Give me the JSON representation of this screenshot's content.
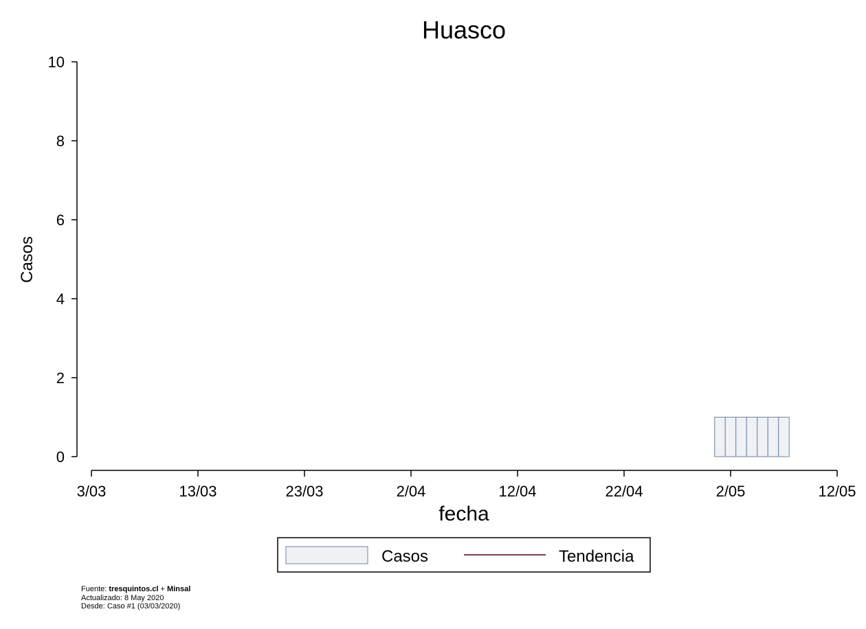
{
  "chart_data": {
    "type": "bar",
    "title": "Huasco",
    "xlabel": "fecha",
    "ylabel": "Casos",
    "x_axis": {
      "start_date": "2020-03-03",
      "end_date": "2020-05-12",
      "tick_labels": [
        "3/03",
        "13/03",
        "23/03",
        "2/04",
        "12/04",
        "22/04",
        "2/05",
        "12/05"
      ]
    },
    "y_axis": {
      "ylim": [
        0,
        10
      ],
      "tick_labels": [
        "0",
        "2",
        "4",
        "6",
        "8",
        "10"
      ]
    },
    "grid": false,
    "legend": {
      "placement": "bottom",
      "items": [
        {
          "label": "Casos",
          "kind": "bar",
          "fill": "#eff1f4",
          "stroke": "#6f82a0"
        },
        {
          "label": "Tendencia",
          "kind": "line",
          "stroke": "#7f3c46"
        }
      ]
    },
    "series": [
      {
        "name": "Casos",
        "points": [
          {
            "date": "2020-05-01",
            "value": 1
          },
          {
            "date": "2020-05-02",
            "value": 1
          },
          {
            "date": "2020-05-03",
            "value": 1
          },
          {
            "date": "2020-05-04",
            "value": 1
          },
          {
            "date": "2020-05-05",
            "value": 1
          },
          {
            "date": "2020-05-06",
            "value": 1
          },
          {
            "date": "2020-05-07",
            "value": 1
          }
        ]
      }
    ]
  },
  "footer": {
    "source_prefix": "Fuente: ",
    "source_site": "tresquintos.cl",
    "source_sep": " + ",
    "source_org": "Minsal",
    "updated": "Actualizado: 8 May 2020",
    "since": "Desde: Caso #1  (03/03/2020)"
  }
}
